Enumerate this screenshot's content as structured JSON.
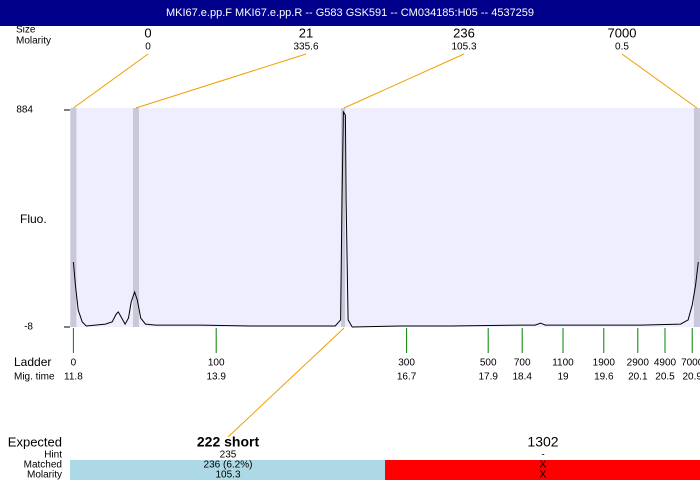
{
  "header": {
    "title": "MKI67.e.pp.F  MKI67.e.pp.R -- G583 GSK591 -- CM034185:H05 -- 4537259"
  },
  "top_rows": {
    "size_label": "Size",
    "molarity_label": "Molarity"
  },
  "peaks": [
    {
      "size": 0,
      "molarity": 0,
      "time": 11.8
    },
    {
      "size": 21,
      "molarity": 335.6,
      "time": 12.72
    },
    {
      "size": 236,
      "molarity": 105.3,
      "time": 15.78
    },
    {
      "size": 7000,
      "molarity": 0.5,
      "time": 20.97
    }
  ],
  "chart_data": {
    "type": "line",
    "ylabel": "Fluo.",
    "ladder_label": "Ladder",
    "xlabel": "Mig. time",
    "x": [
      11.8,
      11.83,
      11.87,
      11.93,
      11.99,
      12.12,
      12.27,
      12.37,
      12.43,
      12.46,
      12.51,
      12.56,
      12.61,
      12.65,
      12.7,
      12.74,
      12.79,
      12.86,
      13.01,
      13.67,
      14.4,
      15.14,
      15.65,
      15.73,
      15.75,
      15.77,
      15.8,
      15.81,
      15.84,
      15.9,
      16.61,
      17.34,
      18.37,
      18.59,
      18.67,
      18.74,
      19.55,
      20.14,
      20.73,
      20.84,
      20.9,
      20.95,
      20.99
    ],
    "values": [
      259,
      165,
      62,
      13,
      -4,
      0,
      4,
      13,
      45,
      54,
      29,
      4,
      29,
      95,
      136,
      103,
      29,
      4,
      0,
      0,
      -4,
      -4,
      -4,
      21,
      514,
      876,
      863,
      514,
      21,
      -8,
      -4,
      -4,
      0,
      0,
      8,
      0,
      0,
      0,
      4,
      21,
      82,
      165,
      259
    ],
    "color": "#000000",
    "ylim": [
      -8,
      884
    ],
    "yticks": [
      -8,
      884
    ],
    "xlim": [
      11.75,
      21.0
    ],
    "xticks": [
      11.8,
      13.9,
      16.7,
      17.9,
      18.4,
      19,
      19.6,
      20.1,
      20.5,
      20.9
    ],
    "ladder_sizes": [
      0,
      100,
      300,
      500,
      700,
      1100,
      1900,
      2900,
      4900,
      7000
    ]
  },
  "expected": {
    "labels": [
      "Expected",
      "Hint",
      "Matched",
      "Molarity"
    ],
    "columns": [
      {
        "expected": "222 short",
        "hint": "235",
        "matched": "236 (6.2%)",
        "molarity": "105.3",
        "color": "#add8e6"
      },
      {
        "expected": "1302",
        "hint": "-",
        "matched": "X",
        "molarity": "X",
        "color": "#ff0000"
      }
    ]
  }
}
